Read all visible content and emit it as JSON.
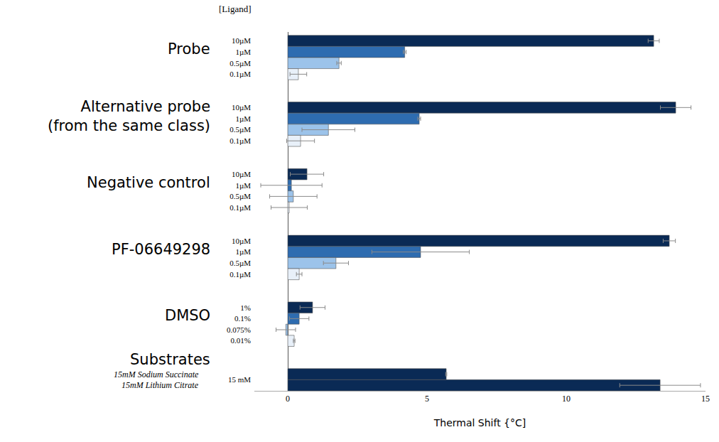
{
  "chart_data": {
    "type": "bar",
    "orientation": "horizontal",
    "header": "[Ligand]",
    "xlabel": "Thermal Shift {°C]",
    "xlim": [
      -1.2,
      15
    ],
    "xticks": [
      0,
      5,
      10,
      15
    ],
    "groups": [
      {
        "name": "Probe",
        "categories": [
          "10µM",
          "1µM",
          "0.5µM",
          "0.1µM"
        ],
        "values": [
          13.14,
          4.2,
          1.84,
          0.38
        ],
        "errors": [
          0.2,
          0.05,
          0.08,
          0.3
        ],
        "colors": [
          "#0a2a55",
          "#2e6cb0",
          "#9cc3ea",
          "#e8f0f9"
        ]
      },
      {
        "name": "Alternative probe\n(from the same class)",
        "categories": [
          "10µM",
          "1µM",
          "0.5µM",
          "0.1µM"
        ],
        "values": [
          13.93,
          4.72,
          1.46,
          0.46
        ],
        "errors": [
          0.55,
          0.05,
          0.95,
          0.5
        ],
        "colors": [
          "#0a2a55",
          "#2e6cb0",
          "#9cc3ea",
          "#e8f0f9"
        ]
      },
      {
        "name": "Negative control",
        "categories": [
          "10µM",
          "1µM",
          "0.5µM",
          "0.1µM"
        ],
        "values": [
          0.69,
          0.13,
          0.2,
          0.05
        ],
        "errors": [
          0.6,
          1.1,
          0.85,
          0.65
        ],
        "colors": [
          "#0a2a55",
          "#2e6cb0",
          "#9cc3ea",
          "#e8f0f9"
        ]
      },
      {
        "name": "PF-06649298",
        "categories": [
          "10µM",
          "1µM",
          "0.5µM",
          "0.1µM"
        ],
        "values": [
          13.7,
          4.77,
          1.73,
          0.41
        ],
        "errors": [
          0.22,
          1.75,
          0.45,
          0.1
        ],
        "colors": [
          "#0a2a55",
          "#2e6cb0",
          "#9cc3ea",
          "#e8f0f9"
        ]
      },
      {
        "name": "DMSO",
        "categories": [
          "1%",
          "0.1%",
          "0.075%",
          "0.01%"
        ],
        "values": [
          0.89,
          0.41,
          -0.07,
          0.23
        ],
        "errors": [
          0.45,
          0.35,
          0.35,
          0.03
        ],
        "colors": [
          "#0a2a55",
          "#2e6cb0",
          "#9cc3ea",
          "#e8f0f9"
        ]
      },
      {
        "name": "Substrates",
        "concentration": "15 mM",
        "categories": [
          "15mM Sodium Succinate",
          "15mM Lithium Citrate"
        ],
        "values": [
          5.69,
          13.37
        ],
        "errors": [
          0.02,
          1.45
        ],
        "colors": [
          "#0a2a55",
          "#0a2a55"
        ]
      }
    ]
  }
}
